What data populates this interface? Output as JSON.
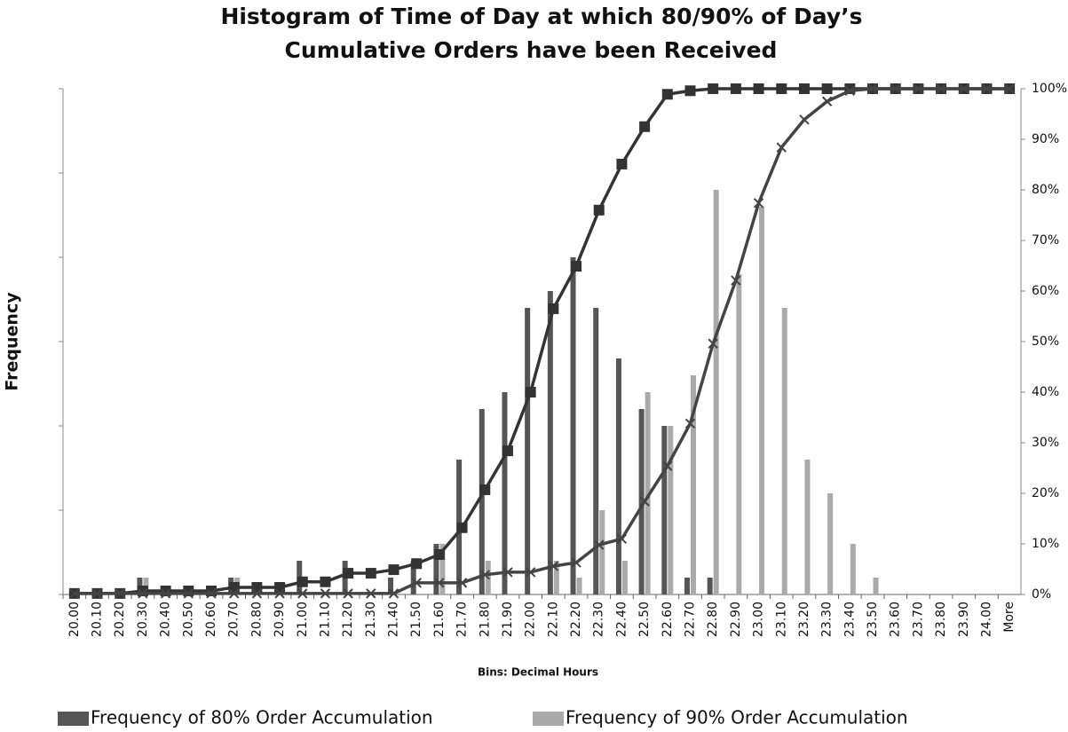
{
  "chart_data": {
    "type": "bar",
    "title": [
      "Histogram of Time of Day at which 80/90% of Day’s",
      "Cumulative Orders have been Received"
    ],
    "x_label": "Bins: Decimal Hours",
    "y_label": "Frequency",
    "categories": [
      "20.00",
      "20.10",
      "20.20",
      "20.30",
      "20.40",
      "20.50",
      "20.60",
      "20.70",
      "20.80",
      "20.90",
      "21.00",
      "21.10",
      "21.20",
      "21.30",
      "21.40",
      "21.50",
      "21.60",
      "21.70",
      "21.80",
      "21.90",
      "22.00",
      "22.10",
      "22.20",
      "22.30",
      "22.40",
      "22.50",
      "22.60",
      "22.70",
      "22.80",
      "22.90",
      "23.00",
      "23.10",
      "23.20",
      "23.30",
      "23.40",
      "23.50",
      "23.60",
      "23.70",
      "23.80",
      "23.90",
      "24.00",
      "More"
    ],
    "ylim": [
      0,
      30
    ],
    "y2lim": [
      0,
      100
    ],
    "y2ticks": [
      {
        "value": 0,
        "label": "0%"
      },
      {
        "value": 10,
        "label": "10%"
      },
      {
        "value": 20,
        "label": "20%"
      },
      {
        "value": 30,
        "label": "30%"
      },
      {
        "value": 40,
        "label": "40%"
      },
      {
        "value": 50,
        "label": "50%"
      },
      {
        "value": 60,
        "label": "60%"
      },
      {
        "value": 70,
        "label": "70%"
      },
      {
        "value": 80,
        "label": "80%"
      },
      {
        "value": 90,
        "label": "90%"
      },
      {
        "value": 100,
        "label": "100%"
      }
    ],
    "legend": "bottom",
    "series": [
      {
        "name": "Frequency of 80% Order Accumulation",
        "color": "#555555",
        "values": [
          0,
          0,
          0,
          1,
          0,
          0,
          0,
          1,
          0,
          0,
          2,
          0,
          2,
          0,
          1,
          2,
          3,
          8,
          11,
          12,
          17,
          18,
          20,
          17,
          14,
          11,
          10,
          1,
          1,
          0,
          0,
          0,
          0,
          0,
          0,
          0,
          0,
          0,
          0,
          0,
          0,
          0
        ]
      },
      {
        "name": "Frequency of 90% Order Accumulation",
        "color": "#aaaaaa",
        "values": [
          0,
          0,
          0,
          1,
          0,
          0,
          0,
          1,
          0,
          0,
          0,
          0,
          0,
          0,
          0,
          0,
          3,
          0,
          2,
          0,
          0,
          2,
          1,
          5,
          2,
          12,
          10,
          13,
          24,
          19,
          23,
          17,
          8,
          6,
          3,
          1,
          0,
          0,
          0,
          0,
          0,
          0
        ]
      },
      {
        "type": "line",
        "axis": "y2",
        "marker": "square",
        "color": "#333333",
        "values": [
          0.2,
          0.2,
          0.2,
          0.7,
          0.7,
          0.7,
          0.7,
          1.4,
          1.4,
          1.4,
          2.5,
          2.5,
          4.2,
          4.2,
          4.9,
          6.1,
          7.9,
          13.2,
          20.7,
          28.4,
          40,
          56.5,
          64.9,
          76,
          85.1,
          92.5,
          98.9,
          99.6,
          100,
          100,
          100,
          100,
          100,
          100,
          100,
          100,
          100,
          100,
          100,
          100,
          100,
          100
        ]
      },
      {
        "type": "line",
        "axis": "y2",
        "marker": "x",
        "color": "#444444",
        "values": [
          0.2,
          0.2,
          0.2,
          0.2,
          0.2,
          0.2,
          0.2,
          0.2,
          0.2,
          0.2,
          0.2,
          0.2,
          0.2,
          0.2,
          0.2,
          2.3,
          2.3,
          2.3,
          3.9,
          4.4,
          4.4,
          5.6,
          6.3,
          9.8,
          11,
          18.4,
          25.4,
          33.8,
          49.6,
          62.1,
          77.4,
          88.4,
          93.9,
          97.5,
          99.6,
          100,
          100,
          100,
          100,
          100,
          100,
          100
        ]
      }
    ]
  }
}
